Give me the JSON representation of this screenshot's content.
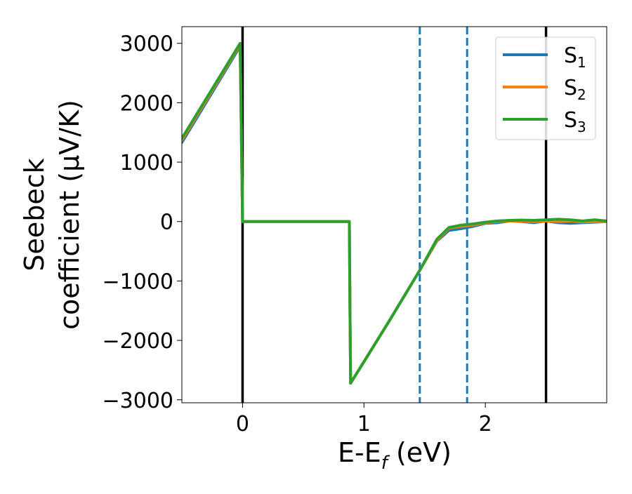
{
  "chart_data": {
    "type": "line",
    "xlabel_main": "E-E",
    "xlabel_sub": "f",
    "xlabel_unit": " (eV)",
    "ylabel_line1": "Seebeck",
    "ylabel_line2": "coefficient  (μV/K)",
    "xlim": [
      -0.5,
      3.0
    ],
    "ylim": [
      -3050,
      3280
    ],
    "x_ticks": [
      0,
      1,
      2
    ],
    "y_ticks": [
      -3000,
      -2000,
      -1000,
      0,
      1000,
      2000,
      3000
    ],
    "x_tick_labels": [
      "0",
      "1",
      "2"
    ],
    "y_tick_labels": [
      "−3000",
      "−2000",
      "−1000",
      "0",
      "1000",
      "2000",
      "3000"
    ],
    "grid": false,
    "legend_position": "top-right",
    "vlines": [
      {
        "x": 0.0,
        "style": "solid",
        "color": "#000000"
      },
      {
        "x": 2.5,
        "style": "solid",
        "color": "#000000"
      },
      {
        "x": 1.46,
        "style": "dashed",
        "color": "#1f77b4"
      },
      {
        "x": 1.85,
        "style": "dashed",
        "color": "#1f77b4"
      }
    ],
    "series": [
      {
        "name": "S",
        "sub": "1",
        "color": "#1f77b4",
        "x": [
          -0.5,
          -0.02,
          -0.01,
          0.0,
          0.88,
          0.885,
          0.89,
          1.2,
          1.46,
          1.6,
          1.7,
          1.8,
          1.9,
          2.0,
          2.1,
          2.2,
          2.3,
          2.4,
          2.5,
          2.6,
          2.7,
          2.8,
          2.9,
          3.0
        ],
        "y": [
          1330,
          2950,
          1500,
          0,
          0,
          -1500,
          -2720,
          -1700,
          -820,
          -330,
          -150,
          -120,
          -80,
          -30,
          -20,
          10,
          0,
          -20,
          10,
          -20,
          -30,
          -20,
          -10,
          0
        ]
      },
      {
        "name": "S",
        "sub": "2",
        "color": "#ff7f0e",
        "x": [
          -0.5,
          -0.02,
          -0.01,
          0.0,
          0.88,
          0.885,
          0.89,
          1.2,
          1.46,
          1.6,
          1.7,
          1.8,
          1.9,
          2.0,
          2.1,
          2.2,
          2.3,
          2.4,
          2.5,
          2.6,
          2.7,
          2.8,
          2.9,
          3.0
        ],
        "y": [
          1370,
          2980,
          1500,
          0,
          0,
          -1500,
          -2720,
          -1700,
          -820,
          -320,
          -110,
          -80,
          -60,
          -20,
          0,
          10,
          5,
          0,
          10,
          0,
          10,
          -5,
          0,
          0
        ]
      },
      {
        "name": "S",
        "sub": "3",
        "color": "#2ca02c",
        "x": [
          -0.5,
          -0.02,
          -0.01,
          0.0,
          0.88,
          0.885,
          0.89,
          1.2,
          1.46,
          1.6,
          1.7,
          1.8,
          1.9,
          2.0,
          2.1,
          2.2,
          2.3,
          2.4,
          2.5,
          2.6,
          2.7,
          2.8,
          2.9,
          3.0
        ],
        "y": [
          1400,
          3000,
          1500,
          0,
          0,
          -1500,
          -2720,
          -1700,
          -820,
          -300,
          -100,
          -60,
          -40,
          -10,
          10,
          20,
          25,
          20,
          30,
          40,
          30,
          10,
          30,
          10
        ]
      }
    ]
  }
}
